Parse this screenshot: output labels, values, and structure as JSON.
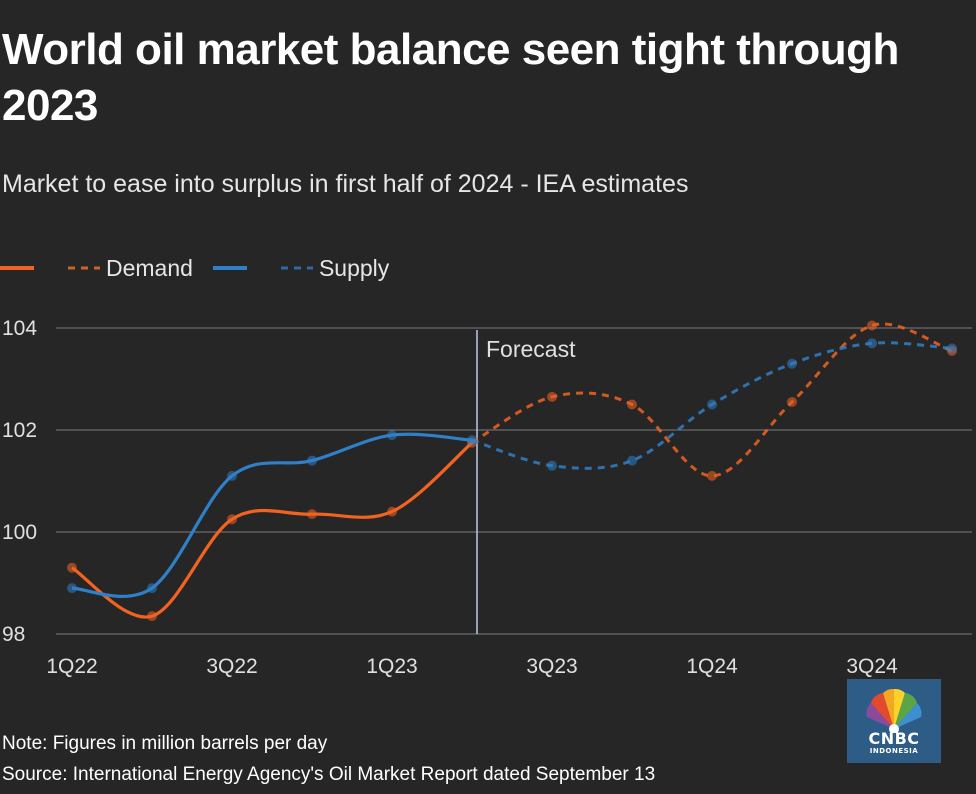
{
  "title": "World oil market balance seen tight through 2023",
  "subtitle": "Market to ease into surplus in first half of 2024 - IEA estimates",
  "note": "Note: Figures in million barrels per day",
  "source": "Source: International Energy Agency's Oil Market Report dated September 13",
  "logo": {
    "brand": "CNBC",
    "sub": "INDONESIA"
  },
  "colors": {
    "demand": "#f26322",
    "supply": "#2f80c8",
    "background": "#262626",
    "grid": "#6b6b6b",
    "forecast_line": "#b9c9ea"
  },
  "chart_data": {
    "type": "line",
    "title": "World oil market balance seen tight through 2023",
    "subtitle": "Market to ease into surplus in first half of 2024 - IEA estimates",
    "x": [
      "1Q22",
      "2Q22",
      "3Q22",
      "4Q22",
      "1Q23",
      "2Q23",
      "3Q23",
      "4Q23",
      "1Q24",
      "2Q24",
      "3Q24",
      "4Q24"
    ],
    "xticks": [
      "1Q22",
      "3Q22",
      "1Q23",
      "3Q23",
      "1Q24",
      "3Q24"
    ],
    "yticks": [
      98,
      100,
      102,
      104
    ],
    "ylim": [
      98,
      104
    ],
    "grid": true,
    "legend": [
      "Demand",
      "Supply"
    ],
    "forecast_label": "Forecast",
    "forecast_start_index": 5,
    "series": [
      {
        "name": "Demand",
        "color": "#f26322",
        "values": [
          99.3,
          98.35,
          100.25,
          100.35,
          100.4,
          101.75,
          102.65,
          102.5,
          101.1,
          102.55,
          104.05,
          103.55
        ]
      },
      {
        "name": "Supply",
        "color": "#2f80c8",
        "values": [
          98.9,
          98.9,
          101.1,
          101.4,
          101.9,
          101.8,
          101.3,
          101.4,
          102.5,
          103.3,
          103.7,
          103.6
        ]
      }
    ]
  }
}
